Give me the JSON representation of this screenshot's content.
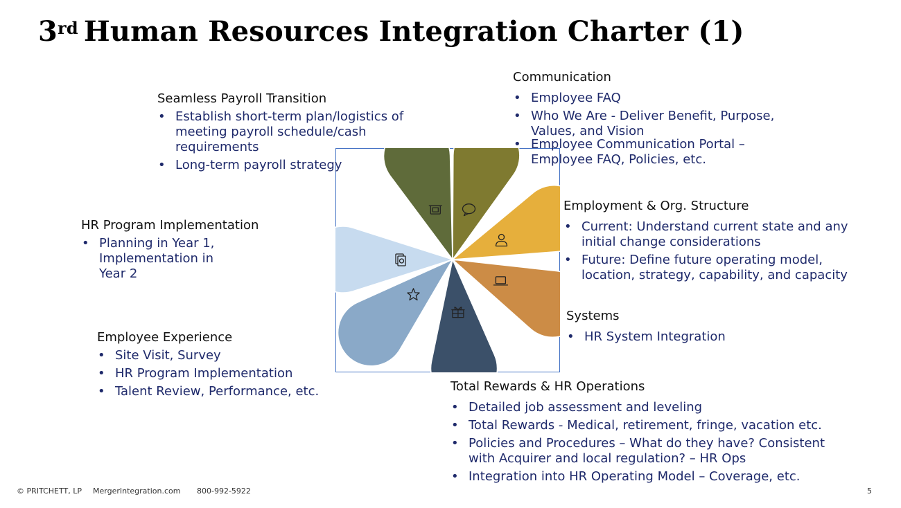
{
  "title": {
    "ordinal_num": "3",
    "ordinal_suffix": "rd",
    "text": "Human Resources Integration Charter (1)"
  },
  "sections": {
    "payroll": {
      "heading": "Seamless Payroll Transition",
      "bullets": [
        "Establish short-term plan/logistics of meeting payroll schedule/cash requirements",
        "Long-term payroll strategy"
      ]
    },
    "communication": {
      "heading": "Communication",
      "bullets": [
        "Employee FAQ",
        "Who We Are - Deliver Benefit, Purpose, Values, and Vision",
        "Employee Communication Portal – Employee FAQ, Policies, etc."
      ]
    },
    "employment": {
      "heading": "Employment & Org. Structure",
      "bullets": [
        "Current: Understand current state and any initial change considerations",
        "Future: Define future operating model, location, strategy, capability, and capacity"
      ]
    },
    "hr_program": {
      "heading": "HR Program Implementation",
      "bullets": [
        "Planning in Year 1, Implementation in Year 2"
      ]
    },
    "systems": {
      "heading": "Systems",
      "bullets": [
        "HR System Integration"
      ]
    },
    "employee_experience": {
      "heading": "Employee Experience",
      "bullets": [
        "Site Visit, Survey",
        "HR Program Implementation",
        "Talent Review, Performance, etc."
      ]
    },
    "total_rewards": {
      "heading": "Total Rewards & HR Operations",
      "bullets": [
        "Detailed job assessment and leveling",
        "Total Rewards - Medical, retirement, fringe, vacation etc.",
        "Policies and Procedures – What do they have? Consistent with Acquirer and local regulation? – HR Ops",
        "Integration into HR Operating Model – Coverage, etc."
      ]
    }
  },
  "petals": [
    {
      "name": "payroll",
      "color": "#5f6b3a",
      "icon": "atm-icon"
    },
    {
      "name": "communication",
      "color": "#7f7a30",
      "icon": "chat-bubble-icon"
    },
    {
      "name": "employment",
      "color": "#e6af3c",
      "icon": "person-icon"
    },
    {
      "name": "systems",
      "color": "#cc8c46",
      "icon": "laptop-icon"
    },
    {
      "name": "total-rewards",
      "color": "#3b5069",
      "icon": "gift-icon"
    },
    {
      "name": "employee-experience",
      "color": "#8aa9c8",
      "icon": "star-icon"
    },
    {
      "name": "hr-program",
      "color": "#c7dbef",
      "icon": "documents-icon"
    }
  ],
  "footer": {
    "copyright": "© PRITCHETT, LP",
    "website": "MergerIntegration.com",
    "phone": "800-992-5922",
    "page": "5"
  }
}
